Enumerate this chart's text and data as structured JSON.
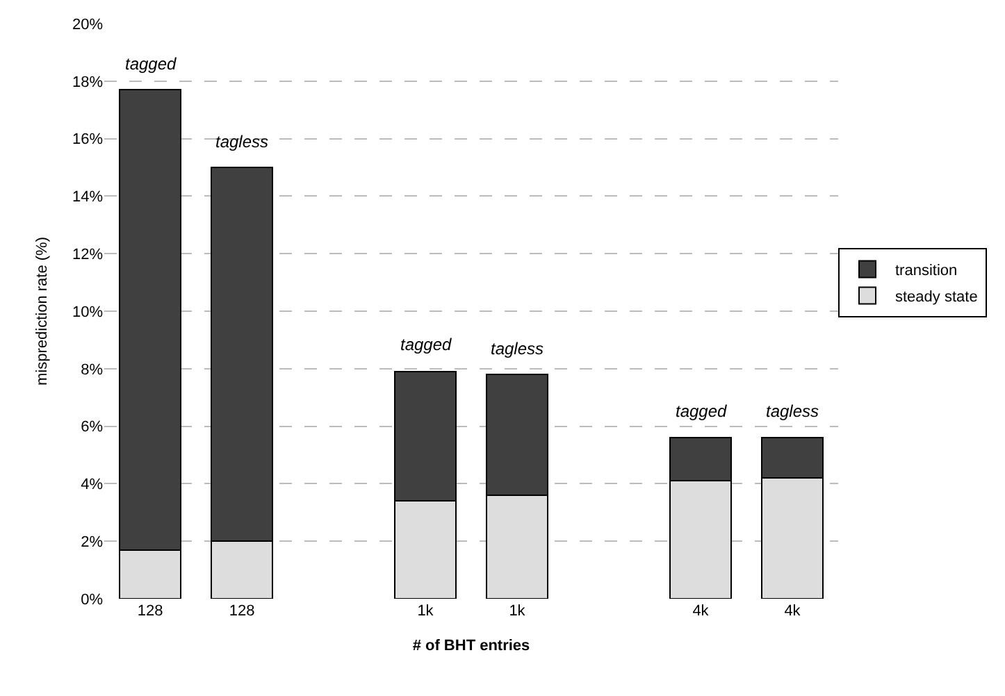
{
  "chart_data": {
    "type": "bar",
    "stacked": true,
    "xlabel": "# of BHT entries",
    "ylabel": "misprediction rate (%)",
    "categories": [
      "128",
      "128",
      null,
      "1k",
      "1k",
      null,
      "4k",
      "4k"
    ],
    "series": [
      {
        "name": "steady state",
        "color": "#dddddd",
        "values": [
          1.7,
          2.0,
          null,
          3.4,
          3.6,
          null,
          4.1,
          4.2
        ]
      },
      {
        "name": "transition",
        "color": "#404040",
        "values": [
          16.0,
          13.0,
          null,
          4.5,
          4.2,
          null,
          1.5,
          1.4
        ]
      }
    ],
    "annotations": [
      "tagged",
      "tagless",
      "tagged",
      "tagless",
      "tagged",
      "tagless"
    ],
    "ylim": [
      0,
      20
    ],
    "yticks": [
      {
        "value": 0,
        "label": "0%"
      },
      {
        "value": 2,
        "label": "2%"
      },
      {
        "value": 4,
        "label": "4%"
      },
      {
        "value": 6,
        "label": "6%"
      },
      {
        "value": 8,
        "label": "8%"
      },
      {
        "value": 10,
        "label": "10%"
      },
      {
        "value": 12,
        "label": "12%"
      },
      {
        "value": 14,
        "label": "14%"
      },
      {
        "value": 16,
        "label": "16%"
      },
      {
        "value": 18,
        "label": "18%"
      },
      {
        "value": 20,
        "label": "20%"
      }
    ],
    "grid": "y",
    "legend": "right"
  }
}
